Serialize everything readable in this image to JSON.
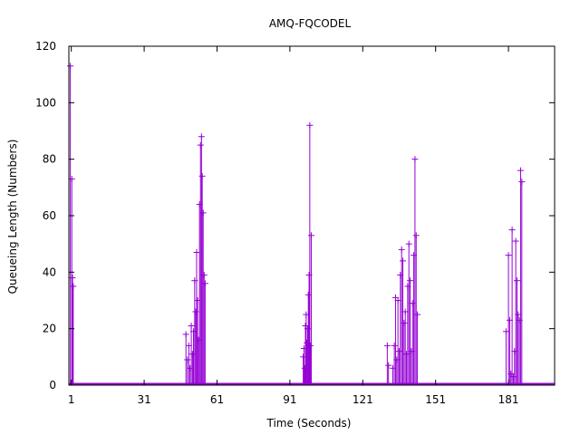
{
  "chart_data": {
    "type": "impulse",
    "title": "AMQ-FQCODEL",
    "xlabel": "Time (Seconds)",
    "ylabel": "Queueing Length (Numbers)",
    "xlim": [
      0,
      200
    ],
    "ylim": [
      0,
      120
    ],
    "xticks": [
      1,
      31,
      61,
      91,
      121,
      151,
      181
    ],
    "yticks": [
      0,
      20,
      40,
      60,
      80,
      100,
      120
    ],
    "grid": false,
    "series_color": "#9400d3",
    "baseline": 0,
    "series": [
      {
        "points": [
          [
            0.6,
            113
          ],
          [
            1.2,
            73
          ],
          [
            1.5,
            38
          ],
          [
            1.8,
            35
          ],
          [
            48.2,
            18
          ],
          [
            48.8,
            9
          ],
          [
            49.4,
            14
          ],
          [
            49.9,
            6
          ],
          [
            50.4,
            21
          ],
          [
            50.9,
            11
          ],
          [
            51.3,
            19
          ],
          [
            51.8,
            37
          ],
          [
            52.2,
            26
          ],
          [
            52.6,
            47
          ],
          [
            53.0,
            30
          ],
          [
            53.4,
            16
          ],
          [
            53.8,
            64
          ],
          [
            54.2,
            85
          ],
          [
            54.6,
            88
          ],
          [
            54.9,
            74
          ],
          [
            55.3,
            61
          ],
          [
            55.7,
            39
          ],
          [
            56.1,
            36
          ],
          [
            96.5,
            10
          ],
          [
            96.8,
            13
          ],
          [
            97.1,
            6
          ],
          [
            97.4,
            21
          ],
          [
            97.7,
            25
          ],
          [
            98.0,
            15
          ],
          [
            98.3,
            20
          ],
          [
            98.6,
            32
          ],
          [
            98.9,
            39
          ],
          [
            99.2,
            92
          ],
          [
            99.5,
            14
          ],
          [
            99.8,
            53
          ],
          [
            131.1,
            14
          ],
          [
            131.6,
            7
          ],
          [
            133.4,
            6
          ],
          [
            134.0,
            14
          ],
          [
            134.5,
            31
          ],
          [
            135.0,
            9
          ],
          [
            135.5,
            30
          ],
          [
            136.0,
            12
          ],
          [
            136.5,
            39
          ],
          [
            137.0,
            48
          ],
          [
            137.5,
            44
          ],
          [
            138.0,
            22
          ],
          [
            138.5,
            26
          ],
          [
            139.0,
            11
          ],
          [
            139.5,
            35
          ],
          [
            140.0,
            50
          ],
          [
            140.5,
            37
          ],
          [
            141.0,
            12
          ],
          [
            141.5,
            29
          ],
          [
            142.0,
            46
          ],
          [
            142.5,
            80
          ],
          [
            143.0,
            53
          ],
          [
            143.5,
            25
          ],
          [
            180.0,
            19
          ],
          [
            181.0,
            46
          ],
          [
            181.5,
            23
          ],
          [
            182.0,
            4
          ],
          [
            182.5,
            55
          ],
          [
            183.0,
            3
          ],
          [
            183.5,
            12
          ],
          [
            184.0,
            51
          ],
          [
            184.5,
            37
          ],
          [
            185.0,
            25
          ],
          [
            185.5,
            23
          ],
          [
            186.0,
            76
          ],
          [
            186.5,
            72
          ]
        ]
      }
    ]
  }
}
